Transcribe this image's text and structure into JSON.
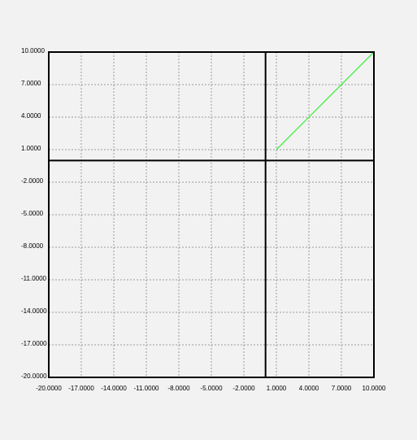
{
  "chart_data": {
    "type": "line",
    "title": "",
    "xlabel": "",
    "ylabel": "",
    "xlim": [
      -20,
      10
    ],
    "ylim": [
      -20,
      10
    ],
    "grid": true,
    "x_ticks": [
      -20,
      -17,
      -14,
      -11,
      -8,
      -5,
      -2,
      1,
      4,
      7,
      10
    ],
    "y_ticks": [
      -20,
      -17,
      -14,
      -11,
      -8,
      -5,
      -2,
      1,
      4,
      7,
      10
    ],
    "x_tick_labels": [
      "-20.0000",
      "-17.0000",
      "-14.0000",
      "-11.0000",
      "-8.0000",
      "-5.0000",
      "-2.0000",
      "1.0000",
      "4.0000",
      "7.0000",
      "10.0000"
    ],
    "y_tick_labels": [
      "-20.0000",
      "-17.0000",
      "-14.0000",
      "-11.0000",
      "-8.0000",
      "-5.0000",
      "-2.0000",
      "1.0000",
      "4.0000",
      "7.0000",
      "10.0000"
    ],
    "series": [
      {
        "color": "#44ee44",
        "x": [
          1,
          10
        ],
        "y": [
          1,
          10
        ]
      }
    ],
    "axis_color": "#000000",
    "grid_color": "#9a9a9a",
    "background": "#f2f2f2"
  }
}
